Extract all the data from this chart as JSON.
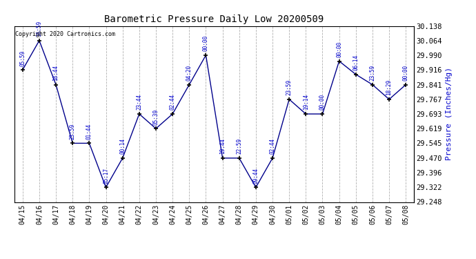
{
  "title": "Barometric Pressure Daily Low 20200509",
  "ylabel": "Pressure (Inches/Hg)",
  "copyright": "Copyright 2020 Cartronics.com",
  "background_color": "#ffffff",
  "line_color": "#00008b",
  "label_color": "#0000cd",
  "ylim": [
    29.248,
    30.138
  ],
  "yticks": [
    29.248,
    29.322,
    29.396,
    29.47,
    29.545,
    29.619,
    29.693,
    29.767,
    29.841,
    29.916,
    29.99,
    30.064,
    30.138
  ],
  "dates": [
    "04/15",
    "04/16",
    "04/17",
    "04/18",
    "04/19",
    "04/20",
    "04/21",
    "04/22",
    "04/23",
    "04/24",
    "04/25",
    "04/26",
    "04/27",
    "04/28",
    "04/29",
    "04/30",
    "05/01",
    "05/02",
    "05/03",
    "05/04",
    "05/05",
    "05/06",
    "05/07",
    "05/08"
  ],
  "values": [
    29.916,
    30.064,
    29.841,
    29.545,
    29.545,
    29.322,
    29.47,
    29.693,
    29.619,
    29.693,
    29.841,
    29.99,
    29.47,
    29.47,
    29.322,
    29.47,
    29.767,
    29.693,
    29.693,
    29.96,
    29.893,
    29.841,
    29.767,
    29.841
  ],
  "time_labels": [
    "05:59",
    "16:59",
    "18:44",
    "23:59",
    "01:44",
    "05:17",
    "00:14",
    "23:44",
    "05:39",
    "02:44",
    "04:20",
    "00:00",
    "19:44",
    "22:59",
    "09:44",
    "02:44",
    "23:59",
    "19:14",
    "00:00",
    "00:00",
    "06:14",
    "23:59",
    "18:29",
    "00:00"
  ]
}
